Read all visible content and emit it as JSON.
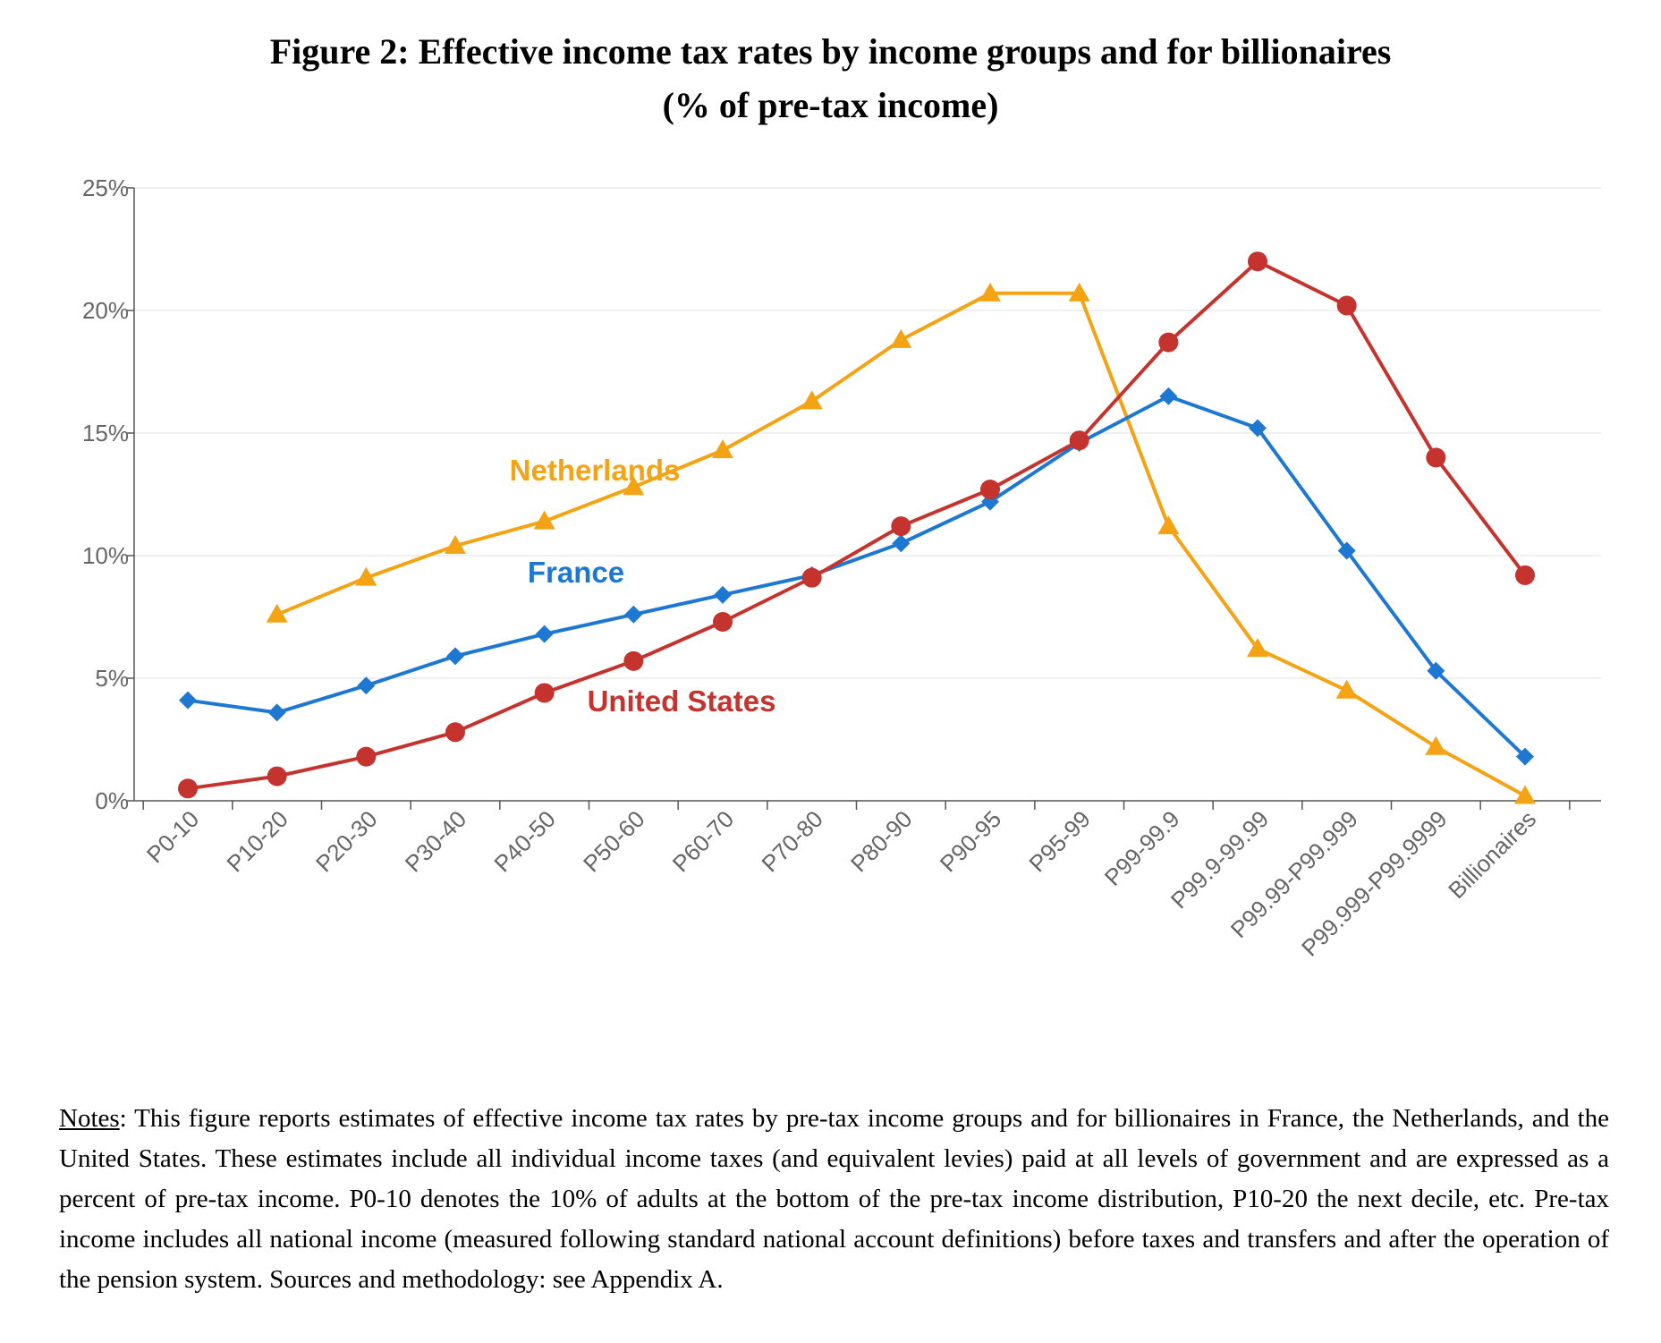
{
  "title": {
    "line1": "Figure 2: Effective income tax rates by income groups and for billionaires",
    "line2": "(% of pre-tax income)"
  },
  "chart_data": {
    "type": "line",
    "categories": [
      "P0-10",
      "P10-20",
      "P20-30",
      "P30-40",
      "P40-50",
      "P50-60",
      "P60-70",
      "P70-80",
      "P80-90",
      "P90-95",
      "P95-99",
      "P99-99.9",
      "P99.9-99.99",
      "P99.99-P99.999",
      "P99.999-P99.9999",
      "Billionaires"
    ],
    "ylim": [
      0,
      25
    ],
    "yticks": [
      "0%",
      "5%",
      "10%",
      "15%",
      "20%",
      "25%"
    ],
    "grid": true,
    "series": [
      {
        "name": "Netherlands",
        "color": "#F4A314",
        "marker": "triangle",
        "values": [
          null,
          7.6,
          9.1,
          10.4,
          11.4,
          12.8,
          14.3,
          16.3,
          18.8,
          20.7,
          20.7,
          11.2,
          6.2,
          4.5,
          2.2,
          0.2
        ]
      },
      {
        "name": "France",
        "color": "#1E78D2",
        "marker": "diamond",
        "values": [
          4.1,
          3.6,
          4.7,
          5.9,
          6.8,
          7.6,
          8.4,
          9.2,
          10.5,
          12.2,
          14.6,
          16.5,
          15.2,
          10.2,
          5.3,
          1.8
        ]
      },
      {
        "name": "United States",
        "color": "#C4332E",
        "marker": "circle",
        "values": [
          0.5,
          1.0,
          1.8,
          2.8,
          4.4,
          5.7,
          7.3,
          9.1,
          11.2,
          12.7,
          14.7,
          18.7,
          22.0,
          20.2,
          14.0,
          9.2
        ]
      }
    ]
  },
  "notes": {
    "label": "Notes",
    "text": ": This figure reports estimates of effective income tax rates by pre-tax income groups and for billionaires in France, the Netherlands, and the United States. These estimates include all individual income taxes (and equivalent levies) paid at all levels of government and are expressed as a percent of pre-tax income. P0-10 denotes the 10% of adults at the bottom of the pre-tax income distribution, P10-20 the next decile, etc. Pre-tax income includes all national income (measured following standard national account definitions) before taxes and transfers and after the operation of the pension system. Sources and methodology: see Appendix A."
  }
}
